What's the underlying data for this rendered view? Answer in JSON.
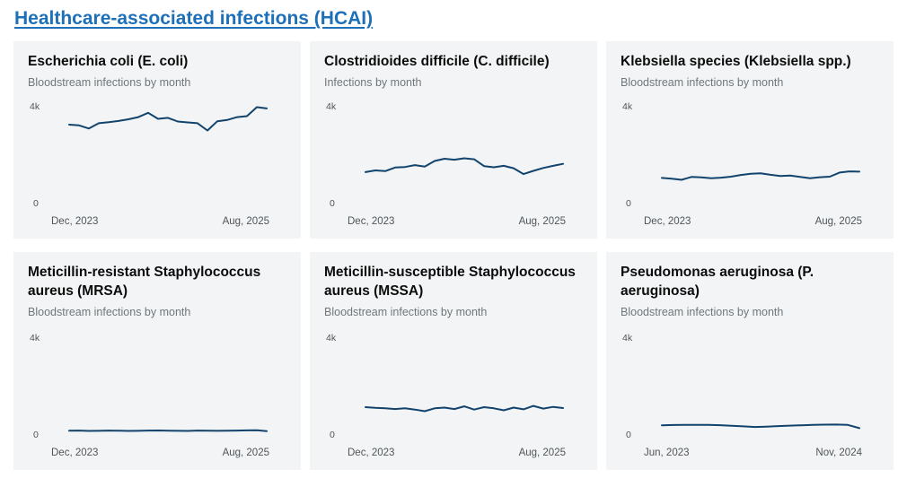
{
  "page": {
    "heading": "Healthcare-associated infections (HCAI)"
  },
  "colors": {
    "heading_link": "#1d70b8",
    "card_background": "#f3f4f5",
    "line": "#12436d",
    "title_text": "#0b0c0c",
    "subtitle_text": "#6f777b",
    "axis_text": "#4e565b"
  },
  "chart_data": [
    {
      "type": "line",
      "title": "Escherichia coli (E. coli)",
      "subtitle": "Bloodstream infections by month",
      "ylabel_top": "4k",
      "ylabel_bottom": "0",
      "xtick_first": "Dec, 2023",
      "xtick_last": "Aug, 2025",
      "ylim": [
        0,
        4000
      ],
      "grid": false,
      "values": [
        3260,
        3230,
        3100,
        3320,
        3360,
        3410,
        3480,
        3570,
        3750,
        3500,
        3540,
        3390,
        3350,
        3320,
        3020,
        3400,
        3450,
        3570,
        3610,
        3980,
        3930
      ]
    },
    {
      "type": "line",
      "title": "Clostridioides difficile (C. difficile)",
      "subtitle": "Infections by month",
      "ylabel_top": "4k",
      "ylabel_bottom": "0",
      "xtick_first": "Dec, 2023",
      "xtick_last": "Aug, 2025",
      "ylim": [
        0,
        4000
      ],
      "grid": false,
      "values": [
        1300,
        1370,
        1340,
        1490,
        1510,
        1590,
        1530,
        1760,
        1850,
        1810,
        1870,
        1830,
        1550,
        1500,
        1560,
        1460,
        1220,
        1350,
        1470,
        1560,
        1640
      ]
    },
    {
      "type": "line",
      "title": "Klebsiella species (Klebsiella spp.)",
      "subtitle": "Bloodstream infections by month",
      "ylabel_top": "4k",
      "ylabel_bottom": "0",
      "xtick_first": "Dec, 2023",
      "xtick_last": "Aug, 2025",
      "ylim": [
        0,
        4000
      ],
      "grid": false,
      "values": [
        1060,
        1030,
        980,
        1100,
        1080,
        1050,
        1070,
        1110,
        1180,
        1230,
        1250,
        1190,
        1140,
        1160,
        1100,
        1050,
        1090,
        1110,
        1280,
        1330,
        1320
      ]
    },
    {
      "type": "line",
      "title": "Meticillin-resistant Staphylococcus aureus (MRSA)",
      "subtitle": "Bloodstream infections by month",
      "ylabel_top": "4k",
      "ylabel_bottom": "0",
      "xtick_first": "Dec, 2023",
      "xtick_last": "Aug, 2025",
      "ylim": [
        0,
        4000
      ],
      "grid": false,
      "values": [
        175,
        180,
        165,
        170,
        180,
        175,
        168,
        172,
        180,
        186,
        178,
        172,
        168,
        180,
        176,
        170,
        175,
        182,
        188,
        192,
        158
      ]
    },
    {
      "type": "line",
      "title": "Meticillin-susceptible Staphylococcus aureus (MSSA)",
      "subtitle": "Bloodstream infections by month",
      "ylabel_top": "4k",
      "ylabel_bottom": "0",
      "xtick_first": "Dec, 2023",
      "xtick_last": "Aug, 2025",
      "ylim": [
        0,
        4000
      ],
      "grid": false,
      "values": [
        1150,
        1120,
        1100,
        1070,
        1100,
        1050,
        980,
        1100,
        1130,
        1070,
        1180,
        1050,
        1150,
        1100,
        1020,
        1130,
        1060,
        1200,
        1090,
        1160,
        1110
      ]
    },
    {
      "type": "line",
      "title": "Pseudomonas aeruginosa (P. aeruginosa)",
      "subtitle": "Bloodstream infections by month",
      "ylabel_top": "4k",
      "ylabel_bottom": "0",
      "xtick_first": "Jun, 2023",
      "xtick_last": "Nov, 2024",
      "ylim": [
        0,
        4000
      ],
      "grid": false,
      "values": [
        400,
        410,
        415,
        420,
        415,
        405,
        380,
        355,
        330,
        345,
        365,
        385,
        400,
        415,
        425,
        430,
        415,
        280
      ]
    }
  ]
}
